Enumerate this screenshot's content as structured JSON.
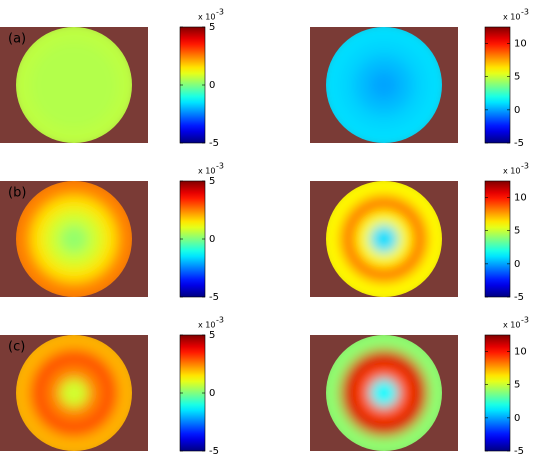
{
  "chart_data": [
    {
      "type": "heatmap",
      "label": "(a)",
      "clim": [
        -5,
        5
      ],
      "cticks": [
        -5,
        0,
        5
      ],
      "scale_label": "x 10",
      "scale_exponent": "-3",
      "background_color": "#7a3b36",
      "radial_values": [
        0.6,
        0.5,
        0.5,
        0.5
      ]
    },
    {
      "type": "heatmap",
      "clim": [
        -5,
        12.5
      ],
      "cticks": [
        -5,
        0,
        5,
        10
      ],
      "scale_label": "x 10",
      "scale_exponent": "-3",
      "background_color": "#7a3b36",
      "radial_values": [
        1,
        0.8,
        0.4,
        0
      ]
    },
    {
      "type": "heatmap",
      "label": "(b)",
      "clim": [
        -5,
        5
      ],
      "cticks": [
        -5,
        0,
        5
      ],
      "scale_label": "x 10",
      "scale_exponent": "-3",
      "background_color": "#7a3b36",
      "radial_values": [
        2.5,
        1.5,
        0.8,
        0.2
      ]
    },
    {
      "type": "heatmap",
      "clim": [
        -5,
        12.5
      ],
      "cticks": [
        -5,
        0,
        5,
        10
      ],
      "scale_label": "x 10",
      "scale_exponent": "-3",
      "background_color": "#7a3b36",
      "radial_values": [
        6,
        8.5,
        6,
        1
      ]
    },
    {
      "type": "heatmap",
      "label": "(c)",
      "clim": [
        -5,
        5
      ],
      "cticks": [
        -5,
        0,
        5
      ],
      "scale_label": "x 10",
      "scale_exponent": "-3",
      "background_color": "#7a3b36",
      "radial_values": [
        2,
        3,
        2.5,
        0.8
      ]
    },
    {
      "type": "heatmap",
      "clim": [
        -5,
        12.5
      ],
      "cticks": [
        -5,
        0,
        5,
        10
      ],
      "scale_label": "x 10",
      "scale_exponent": "-3",
      "background_color": "#7a3b36",
      "radial_values": [
        4,
        11,
        9,
        1.5
      ]
    }
  ]
}
